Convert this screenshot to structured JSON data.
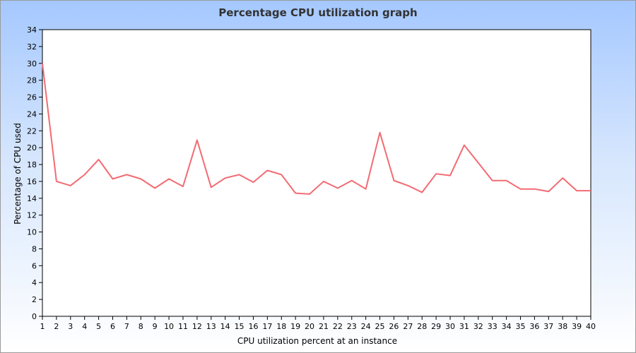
{
  "chart_data": {
    "type": "line",
    "title": "Percentage CPU utilization graph",
    "xlabel": "CPU utilization percent at an instance",
    "ylabel": "Percentage of CPU used",
    "xlim": [
      1,
      40
    ],
    "ylim": [
      0,
      34
    ],
    "y_tick_step": 2,
    "grid": false,
    "legend": "none",
    "line_color": "#f26b73",
    "x": [
      1,
      2,
      3,
      4,
      5,
      6,
      7,
      8,
      9,
      10,
      11,
      12,
      13,
      14,
      15,
      16,
      17,
      18,
      19,
      20,
      21,
      22,
      23,
      24,
      25,
      26,
      27,
      28,
      29,
      30,
      31,
      32,
      33,
      34,
      35,
      36,
      37,
      38,
      39,
      40
    ],
    "series": [
      {
        "values": [
          30.0,
          16.0,
          15.5,
          16.8,
          18.6,
          16.3,
          16.8,
          16.3,
          15.2,
          16.3,
          15.4,
          20.9,
          15.3,
          16.4,
          16.8,
          15.9,
          17.3,
          16.8,
          14.6,
          14.5,
          16.0,
          15.2,
          16.1,
          15.1,
          21.8,
          16.1,
          15.5,
          14.7,
          16.9,
          16.7,
          20.3,
          18.2,
          16.1,
          16.1,
          15.1,
          15.1,
          14.8,
          16.4,
          14.9,
          14.9
        ]
      }
    ]
  },
  "colors": {
    "background_top": "#a5c8ff",
    "background_bottom": "#ffffff",
    "plot_area": "#ffffff",
    "axis": "#000000"
  }
}
